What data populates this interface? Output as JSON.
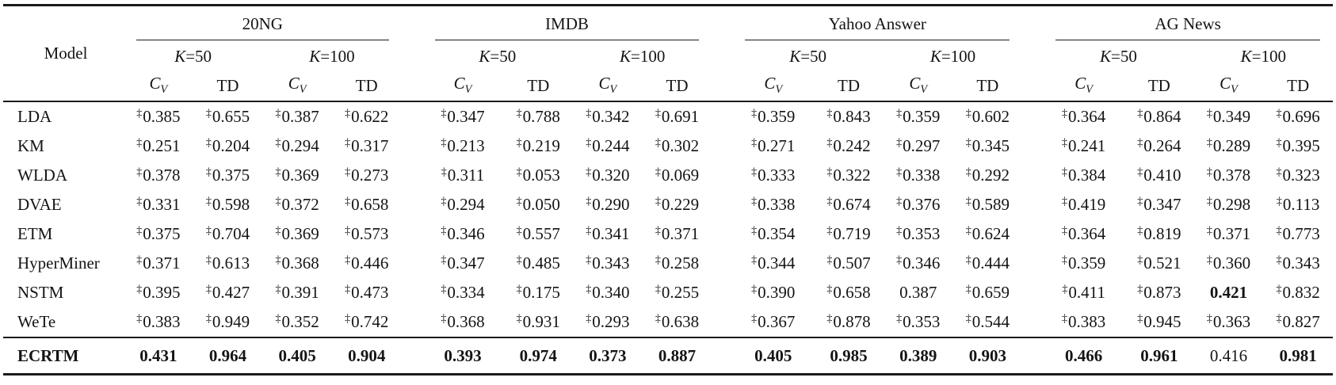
{
  "colors": {
    "text": "#141414",
    "rule": "#1b1b1b",
    "background": "#ffffff"
  },
  "table": {
    "corner_label": "Model",
    "dagger_symbol": "‡",
    "datasets": [
      {
        "name": "20NG"
      },
      {
        "name": "IMDB"
      },
      {
        "name": "Yahoo Answer"
      },
      {
        "name": "AG News"
      }
    ],
    "k_labels": [
      "K=50",
      "K=100"
    ],
    "metrics": [
      "C_V",
      "TD"
    ],
    "rows": [
      {
        "model": "LDA",
        "values": [
          "0.385",
          "0.655",
          "0.387",
          "0.622",
          "0.347",
          "0.788",
          "0.342",
          "0.691",
          "0.359",
          "0.843",
          "0.359",
          "0.602",
          "0.364",
          "0.864",
          "0.349",
          "0.696"
        ],
        "daggers": [
          1,
          1,
          1,
          1,
          1,
          1,
          1,
          1,
          1,
          1,
          1,
          1,
          1,
          1,
          1,
          1
        ],
        "bolds": [
          0,
          0,
          0,
          0,
          0,
          0,
          0,
          0,
          0,
          0,
          0,
          0,
          0,
          0,
          0,
          0
        ]
      },
      {
        "model": "KM",
        "values": [
          "0.251",
          "0.204",
          "0.294",
          "0.317",
          "0.213",
          "0.219",
          "0.244",
          "0.302",
          "0.271",
          "0.242",
          "0.297",
          "0.345",
          "0.241",
          "0.264",
          "0.289",
          "0.395"
        ],
        "daggers": [
          1,
          1,
          1,
          1,
          1,
          1,
          1,
          1,
          1,
          1,
          1,
          1,
          1,
          1,
          1,
          1
        ],
        "bolds": [
          0,
          0,
          0,
          0,
          0,
          0,
          0,
          0,
          0,
          0,
          0,
          0,
          0,
          0,
          0,
          0
        ]
      },
      {
        "model": "WLDA",
        "values": [
          "0.378",
          "0.375",
          "0.369",
          "0.273",
          "0.311",
          "0.053",
          "0.320",
          "0.069",
          "0.333",
          "0.322",
          "0.338",
          "0.292",
          "0.384",
          "0.410",
          "0.378",
          "0.323"
        ],
        "daggers": [
          1,
          1,
          1,
          1,
          1,
          1,
          1,
          1,
          1,
          1,
          1,
          1,
          1,
          1,
          1,
          1
        ],
        "bolds": [
          0,
          0,
          0,
          0,
          0,
          0,
          0,
          0,
          0,
          0,
          0,
          0,
          0,
          0,
          0,
          0
        ]
      },
      {
        "model": "DVAE",
        "values": [
          "0.331",
          "0.598",
          "0.372",
          "0.658",
          "0.294",
          "0.050",
          "0.290",
          "0.229",
          "0.338",
          "0.674",
          "0.376",
          "0.589",
          "0.419",
          "0.347",
          "0.298",
          "0.113"
        ],
        "daggers": [
          1,
          1,
          1,
          1,
          1,
          1,
          1,
          1,
          1,
          1,
          1,
          1,
          1,
          1,
          1,
          1
        ],
        "bolds": [
          0,
          0,
          0,
          0,
          0,
          0,
          0,
          0,
          0,
          0,
          0,
          0,
          0,
          0,
          0,
          0
        ]
      },
      {
        "model": "ETM",
        "values": [
          "0.375",
          "0.704",
          "0.369",
          "0.573",
          "0.346",
          "0.557",
          "0.341",
          "0.371",
          "0.354",
          "0.719",
          "0.353",
          "0.624",
          "0.364",
          "0.819",
          "0.371",
          "0.773"
        ],
        "daggers": [
          1,
          1,
          1,
          1,
          1,
          1,
          1,
          1,
          1,
          1,
          1,
          1,
          1,
          1,
          1,
          1
        ],
        "bolds": [
          0,
          0,
          0,
          0,
          0,
          0,
          0,
          0,
          0,
          0,
          0,
          0,
          0,
          0,
          0,
          0
        ]
      },
      {
        "model": "HyperMiner",
        "values": [
          "0.371",
          "0.613",
          "0.368",
          "0.446",
          "0.347",
          "0.485",
          "0.343",
          "0.258",
          "0.344",
          "0.507",
          "0.346",
          "0.444",
          "0.359",
          "0.521",
          "0.360",
          "0.343"
        ],
        "daggers": [
          1,
          1,
          1,
          1,
          1,
          1,
          1,
          1,
          1,
          1,
          1,
          1,
          1,
          1,
          1,
          1
        ],
        "bolds": [
          0,
          0,
          0,
          0,
          0,
          0,
          0,
          0,
          0,
          0,
          0,
          0,
          0,
          0,
          0,
          0
        ]
      },
      {
        "model": "NSTM",
        "values": [
          "0.395",
          "0.427",
          "0.391",
          "0.473",
          "0.334",
          "0.175",
          "0.340",
          "0.255",
          "0.390",
          "0.658",
          "0.387",
          "0.659",
          "0.411",
          "0.873",
          "0.421",
          "0.832"
        ],
        "daggers": [
          1,
          1,
          1,
          1,
          1,
          1,
          1,
          1,
          1,
          1,
          0,
          1,
          1,
          1,
          0,
          1
        ],
        "bolds": [
          0,
          0,
          0,
          0,
          0,
          0,
          0,
          0,
          0,
          0,
          0,
          0,
          0,
          0,
          1,
          0
        ]
      },
      {
        "model": "WeTe",
        "values": [
          "0.383",
          "0.949",
          "0.352",
          "0.742",
          "0.368",
          "0.931",
          "0.293",
          "0.638",
          "0.367",
          "0.878",
          "0.353",
          "0.544",
          "0.383",
          "0.945",
          "0.363",
          "0.827"
        ],
        "daggers": [
          1,
          1,
          1,
          1,
          1,
          1,
          1,
          1,
          1,
          1,
          1,
          1,
          1,
          1,
          1,
          1
        ],
        "bolds": [
          0,
          0,
          0,
          0,
          0,
          0,
          0,
          0,
          0,
          0,
          0,
          0,
          0,
          0,
          0,
          0
        ]
      },
      {
        "model": "ECRTM",
        "is_footer": true,
        "values": [
          "0.431",
          "0.964",
          "0.405",
          "0.904",
          "0.393",
          "0.974",
          "0.373",
          "0.887",
          "0.405",
          "0.985",
          "0.389",
          "0.903",
          "0.466",
          "0.961",
          "0.416",
          "0.981"
        ],
        "daggers": [
          0,
          0,
          0,
          0,
          0,
          0,
          0,
          0,
          0,
          0,
          0,
          0,
          0,
          0,
          0,
          0
        ],
        "bolds": [
          1,
          1,
          1,
          1,
          1,
          1,
          1,
          1,
          1,
          1,
          1,
          1,
          1,
          1,
          0,
          1
        ]
      }
    ]
  }
}
